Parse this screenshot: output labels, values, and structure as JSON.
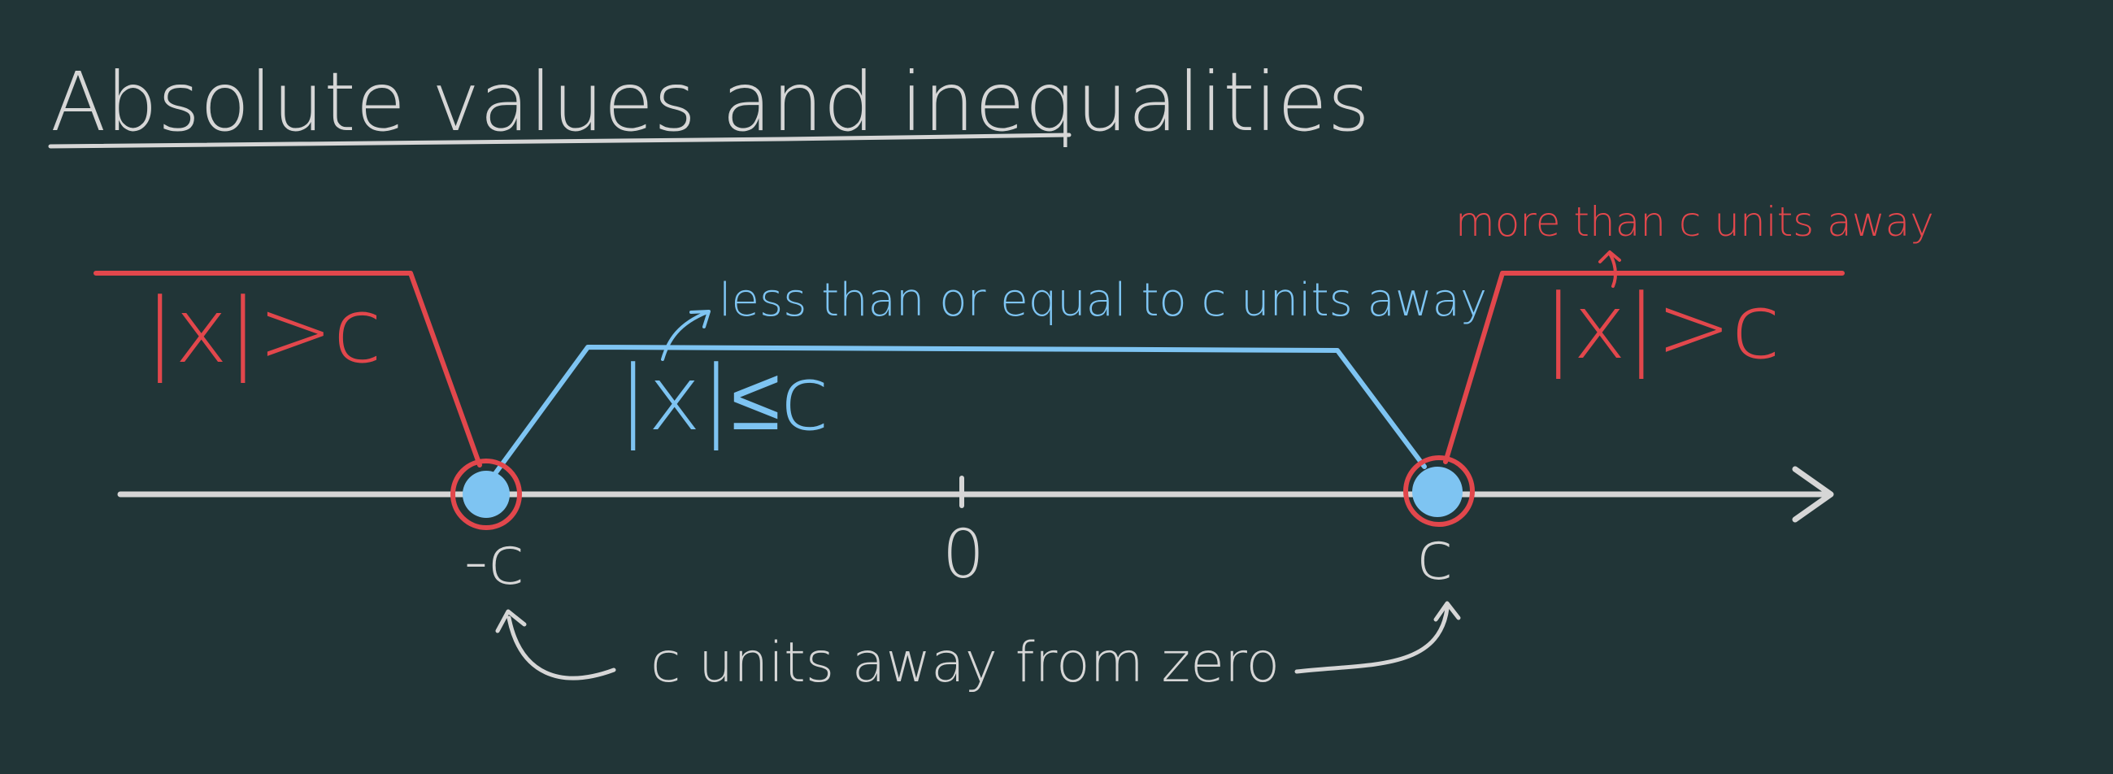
{
  "title": "Absolute values and inequalities",
  "colors": {
    "background": "#213537",
    "chalk": "#d6d6d6",
    "red": "#e2474c",
    "blue": "#7ec4f2"
  },
  "labels": {
    "outside_left": "|x|>c",
    "outside_right": "|x|>c",
    "inside": "|x|≤c",
    "inside_note": "less than or equal to c units away",
    "outside_note": "more than c units away",
    "distance_note": "c units away from zero"
  },
  "number_line": {
    "tick_neg": "-c",
    "tick_zero": "0",
    "tick_pos": "c"
  }
}
